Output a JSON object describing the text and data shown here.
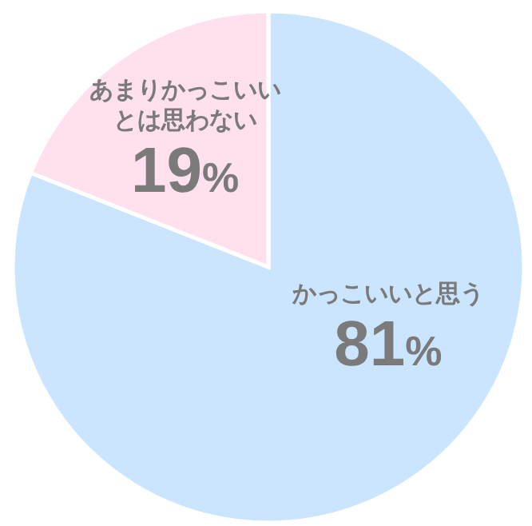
{
  "chart_data": {
    "type": "pie",
    "categories": [
      "かっこいいと思う",
      "あまりかっこいいとは思わない"
    ],
    "values": [
      81,
      19
    ],
    "colors": [
      "#cce5ff",
      "#ffe0ef"
    ],
    "value_labels": [
      "81%",
      "19%"
    ]
  }
}
